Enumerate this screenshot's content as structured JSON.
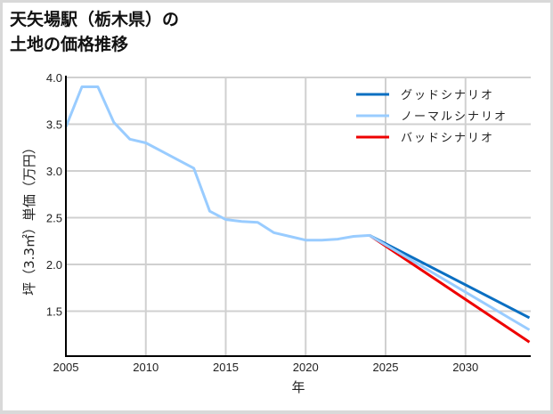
{
  "title_line1": "天矢場駅（栃木県）の",
  "title_line2": "土地の価格推移",
  "chart_data": {
    "type": "line",
    "title": "天矢場駅（栃木県）の土地の価格推移",
    "xlabel": "年",
    "ylabel": "坪（3.3㎡）単価（万円）",
    "xlim": [
      2005,
      2034
    ],
    "ylim": [
      1.2,
      4.0
    ],
    "xticks": [
      2005,
      2010,
      2015,
      2020,
      2025,
      2030
    ],
    "xtick_labels": [
      "2005",
      "2010",
      "2015",
      "2020",
      "2025",
      "2030"
    ],
    "yticks": [
      1.5,
      2.0,
      2.5,
      3.0,
      3.5,
      4.0
    ],
    "ytick_labels": [
      "1.5",
      "2.0",
      "2.5",
      "3.0",
      "3.5",
      "4.0"
    ],
    "grid": true,
    "legend_position": "upper right",
    "series": [
      {
        "name": "グッドシナリオ",
        "color": "#0a6fc2",
        "x": [
          2024,
          2034
        ],
        "values": [
          2.31,
          1.43
        ]
      },
      {
        "name": "ノーマルシナリオ",
        "color": "#99ccff",
        "x": [
          2005,
          2006,
          2007,
          2008,
          2009,
          2010,
          2011,
          2012,
          2013,
          2014,
          2015,
          2016,
          2017,
          2018,
          2019,
          2020,
          2021,
          2022,
          2023,
          2024,
          2034
        ],
        "values": [
          3.47,
          3.9,
          3.9,
          3.52,
          3.34,
          3.3,
          3.21,
          3.12,
          3.03,
          2.57,
          2.48,
          2.46,
          2.45,
          2.34,
          2.3,
          2.26,
          2.26,
          2.27,
          2.3,
          2.31,
          1.3
        ]
      },
      {
        "name": "バッドシナリオ",
        "color": "#ee0000",
        "x": [
          2024,
          2034
        ],
        "values": [
          2.31,
          1.17
        ]
      }
    ]
  }
}
